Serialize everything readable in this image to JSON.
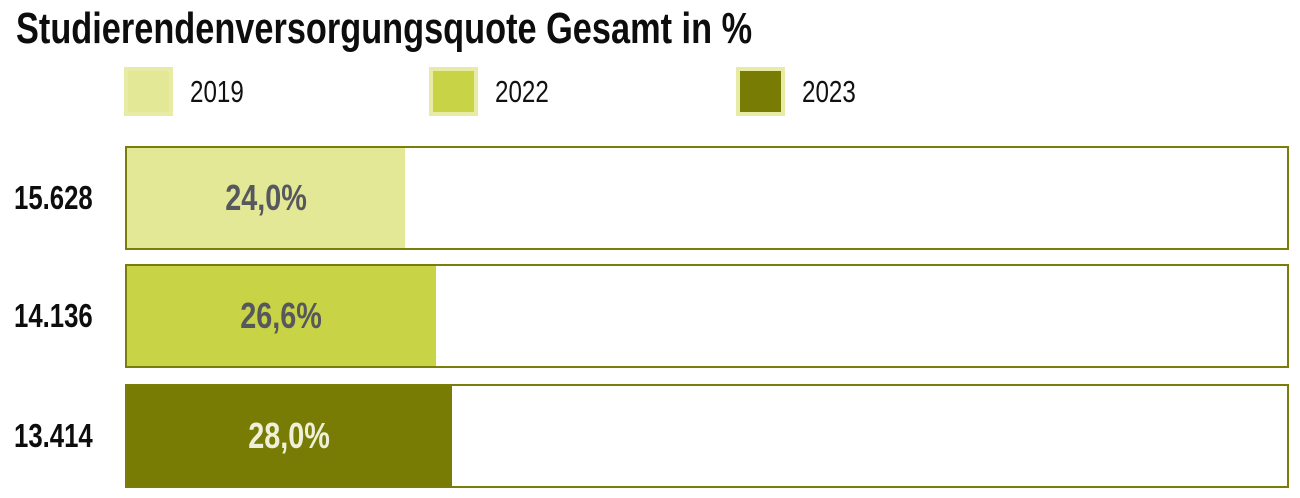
{
  "page": {
    "title": "Studierendenversorgungsquote Gesamt in %"
  },
  "colors": {
    "series_2019": "#e3e897",
    "series_2022": "#c8d345",
    "series_2023": "#787c04",
    "track_border": "#7a7e08",
    "legend_swatch_border": "#e7eba5",
    "value_text_dark": "#56585e",
    "value_text_light": "#eff0da",
    "text_black": "#0d0d0d",
    "background": "#ffffff"
  },
  "chart_data": {
    "type": "bar",
    "orientation": "horizontal",
    "title": "Studierendenversorgungsquote Gesamt in %",
    "categories": [
      "2019",
      "2022",
      "2023"
    ],
    "values": [
      24.0,
      26.6,
      28.0
    ],
    "value_labels": [
      "24,0%",
      "26,6%",
      "28,0%"
    ],
    "count_labels": [
      "15.628",
      "14.136",
      "13.414"
    ],
    "xlabel": "",
    "ylabel": "",
    "xlim": [
      0,
      100
    ],
    "grid": false,
    "legend_position": "top",
    "legend": [
      "2019",
      "2022",
      "2023"
    ],
    "rows": [
      {
        "year": "2019",
        "count": "15.628",
        "value": 24.0,
        "value_label": "24,0%",
        "fill": "#e3e897",
        "value_label_color": "#56585e"
      },
      {
        "year": "2022",
        "count": "14.136",
        "value": 26.6,
        "value_label": "26,6%",
        "fill": "#c8d345",
        "value_label_color": "#56585e"
      },
      {
        "year": "2023",
        "count": "13.414",
        "value": 28.0,
        "value_label": "28,0%",
        "fill": "#787c04",
        "value_label_color": "#eff0da"
      }
    ]
  }
}
